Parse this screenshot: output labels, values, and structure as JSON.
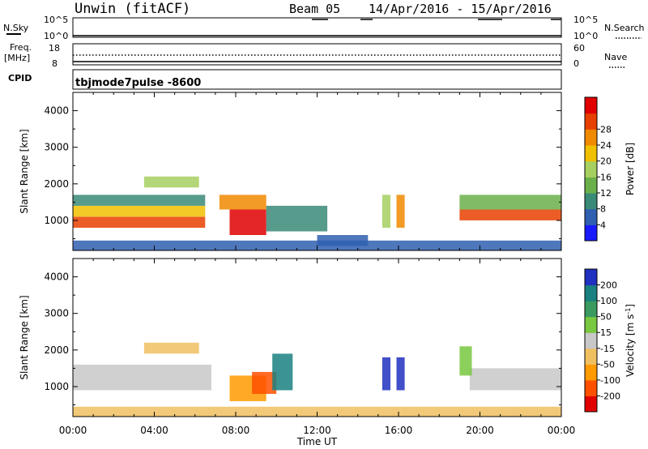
{
  "header": {
    "station": "Unwin (fitACF)",
    "beam": "Beam 05",
    "date_range": "14/Apr/2016 - 15/Apr/2016"
  },
  "top_panels": {
    "nsky_label": "N.Sky",
    "nsearch_label": "N.Search",
    "freq_label_1": "Freq.",
    "freq_label_2": "[MHz]",
    "nave_label": "Nave",
    "cpid_label": "CPID",
    "cpid_value": "tbjmode7pulse -8600",
    "noise_ticks_left": [
      "10^5",
      "10^0"
    ],
    "noise_ticks_right": [
      "10^5",
      "10^0"
    ],
    "freq_ticks_left": [
      "18",
      "8"
    ],
    "freq_ticks_right": [
      "60",
      "0"
    ]
  },
  "colors": {
    "power": [
      "#1a1aff",
      "#2f5fb0",
      "#3a8a78",
      "#6ab04a",
      "#a6d060",
      "#f0c000",
      "#f08a00",
      "#e84000",
      "#e00000"
    ],
    "velocity": [
      "#e00000",
      "#ff5000",
      "#ff9a00",
      "#f0c060",
      "#c8c8c8",
      "#78c840",
      "#3a9a60",
      "#1a8080",
      "#2030c0"
    ]
  },
  "chart_data": [
    {
      "type": "heatmap",
      "name": "power",
      "ylabel": "Slant Range [km]",
      "xlabel": "",
      "ylim": [
        180,
        4500
      ],
      "yticks": [
        "1000",
        "2000",
        "3000",
        "4000"
      ],
      "colorbar": {
        "label": "Power [dB]",
        "ticks": [
          "4",
          "8",
          "12",
          "16",
          "20",
          "24",
          "28"
        ],
        "range": [
          0,
          30
        ]
      },
      "regions": [
        {
          "x0": 0.0,
          "x1": 6.5,
          "r0": 800,
          "r1": 1100,
          "value": 26
        },
        {
          "x0": 0.0,
          "x1": 6.5,
          "r0": 1100,
          "r1": 1400,
          "value": 17
        },
        {
          "x0": 0.0,
          "x1": 6.5,
          "r0": 1400,
          "r1": 1700,
          "value": 9
        },
        {
          "x0": 3.5,
          "x1": 6.2,
          "r0": 1900,
          "r1": 2200,
          "value": 14
        },
        {
          "x0": 7.7,
          "x1": 9.5,
          "r0": 600,
          "r1": 1300,
          "value": 27
        },
        {
          "x0": 7.2,
          "x1": 9.5,
          "r0": 1300,
          "r1": 1700,
          "value": 22
        },
        {
          "x0": 9.5,
          "x1": 12.5,
          "r0": 700,
          "r1": 1400,
          "value": 7
        },
        {
          "x0": 12.0,
          "x1": 14.5,
          "r0": 300,
          "r1": 600,
          "value": 6
        },
        {
          "x0": 15.2,
          "x1": 15.6,
          "r0": 800,
          "r1": 1700,
          "value": 14
        },
        {
          "x0": 15.9,
          "x1": 16.3,
          "r0": 800,
          "r1": 1700,
          "value": 20
        },
        {
          "x0": 19.0,
          "x1": 24.0,
          "r0": 1000,
          "r1": 1300,
          "value": 24
        },
        {
          "x0": 19.0,
          "x1": 24.0,
          "r0": 1300,
          "r1": 1700,
          "value": 10
        },
        {
          "x0": 0.0,
          "x1": 24.0,
          "r0": 180,
          "r1": 450,
          "value": 5
        }
      ]
    },
    {
      "type": "heatmap",
      "name": "velocity",
      "ylabel": "Slant Range [km]",
      "xlabel": "Time UT",
      "ylim": [
        180,
        4500
      ],
      "yticks": [
        "1000",
        "2000",
        "3000",
        "4000"
      ],
      "xticks": [
        "00:00",
        "04:00",
        "08:00",
        "12:00",
        "16:00",
        "20:00",
        "00:00"
      ],
      "xlim_hours": [
        0,
        24
      ],
      "colorbar": {
        "label": "Velocity [m s",
        "label_sup": "-1",
        "label_end": "]",
        "ticks": [
          "-200",
          "-100",
          "-50",
          "-15",
          "15",
          "50",
          "100",
          "200"
        ]
      },
      "regions": [
        {
          "x0": 0.0,
          "x1": 6.8,
          "r0": 900,
          "r1": 1600,
          "value": 0
        },
        {
          "x0": 3.5,
          "x1": 6.2,
          "r0": 1900,
          "r1": 2200,
          "value": -30
        },
        {
          "x0": 7.7,
          "x1": 9.5,
          "r0": 600,
          "r1": 1300,
          "value": -75
        },
        {
          "x0": 8.8,
          "x1": 10.0,
          "r0": 800,
          "r1": 1400,
          "value": -200
        },
        {
          "x0": 9.8,
          "x1": 10.8,
          "r0": 900,
          "r1": 1900,
          "value": 150
        },
        {
          "x0": 15.2,
          "x1": 15.6,
          "r0": 900,
          "r1": 1800,
          "value": 220
        },
        {
          "x0": 15.9,
          "x1": 16.3,
          "r0": 900,
          "r1": 1800,
          "value": 220
        },
        {
          "x0": 19.5,
          "x1": 24.0,
          "r0": 900,
          "r1": 1500,
          "value": 0
        },
        {
          "x0": 19.0,
          "x1": 19.6,
          "r0": 1300,
          "r1": 2100,
          "value": 30
        },
        {
          "x0": 0.0,
          "x1": 24.0,
          "r0": 180,
          "r1": 450,
          "value": -30
        }
      ]
    }
  ]
}
